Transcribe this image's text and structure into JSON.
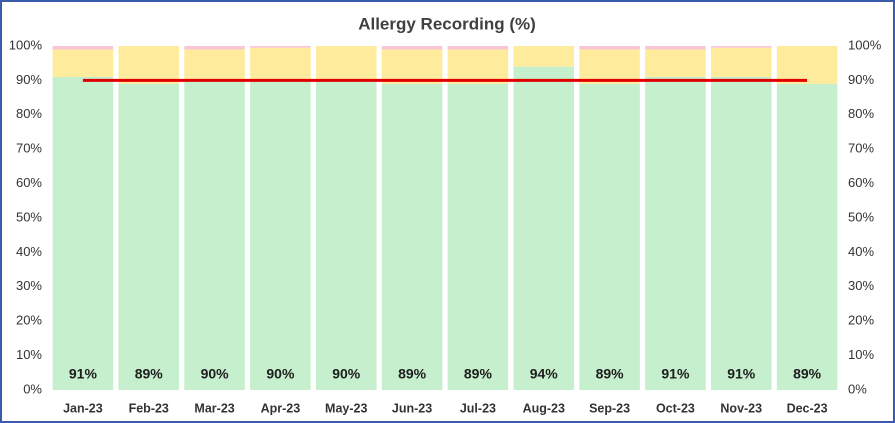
{
  "chart_data": {
    "type": "bar",
    "stacked": true,
    "title": "Allergy Recording (%)",
    "categories": [
      "Jan-23",
      "Feb-23",
      "Mar-23",
      "Apr-23",
      "May-23",
      "Jun-23",
      "Jul-23",
      "Aug-23",
      "Sep-23",
      "Oct-23",
      "Nov-23",
      "Dec-23"
    ],
    "series": [
      {
        "type": "bar",
        "color": "#c6efce",
        "values": [
          91,
          89,
          90,
          90,
          90,
          89,
          89,
          94,
          89,
          91,
          91,
          89
        ],
        "value_labels": [
          "91%",
          "89%",
          "90%",
          "90%",
          "90%",
          "89%",
          "89%",
          "94%",
          "89%",
          "91%",
          "91%",
          "89%"
        ]
      },
      {
        "type": "bar",
        "color": "#ffeb9c",
        "values": [
          8,
          11,
          9,
          9.5,
          10,
          10,
          10,
          6,
          10,
          8,
          8.5,
          11
        ]
      },
      {
        "type": "bar",
        "color": "#f9c6d6",
        "values": [
          1,
          0,
          1,
          0.5,
          0,
          1,
          1,
          0,
          1,
          1,
          0.5,
          0
        ]
      },
      {
        "type": "line",
        "color": "#e00000",
        "values": [
          90,
          90,
          90,
          90,
          90,
          90,
          90,
          90,
          90,
          90,
          90,
          90
        ]
      }
    ],
    "ylim": [
      0,
      100
    ],
    "yticks": [
      {
        "value": 0,
        "label": "0%"
      },
      {
        "value": 10,
        "label": "10%"
      },
      {
        "value": 20,
        "label": "20%"
      },
      {
        "value": 30,
        "label": "30%"
      },
      {
        "value": 40,
        "label": "40%"
      },
      {
        "value": 50,
        "label": "50%"
      },
      {
        "value": 60,
        "label": "60%"
      },
      {
        "value": 70,
        "label": "70%"
      },
      {
        "value": 80,
        "label": "80%"
      },
      {
        "value": 90,
        "label": "90%"
      },
      {
        "value": 100,
        "label": "100%"
      }
    ],
    "y2lim": [
      0,
      100
    ],
    "y2ticks": [
      {
        "value": 0,
        "label": "0%"
      },
      {
        "value": 10,
        "label": "10%"
      },
      {
        "value": 20,
        "label": "20%"
      },
      {
        "value": 30,
        "label": "30%"
      },
      {
        "value": 40,
        "label": "40%"
      },
      {
        "value": 50,
        "label": "50%"
      },
      {
        "value": 60,
        "label": "60%"
      },
      {
        "value": 70,
        "label": "70%"
      },
      {
        "value": 80,
        "label": "80%"
      },
      {
        "value": 90,
        "label": "90%"
      },
      {
        "value": 100,
        "label": "100%"
      }
    ]
  }
}
